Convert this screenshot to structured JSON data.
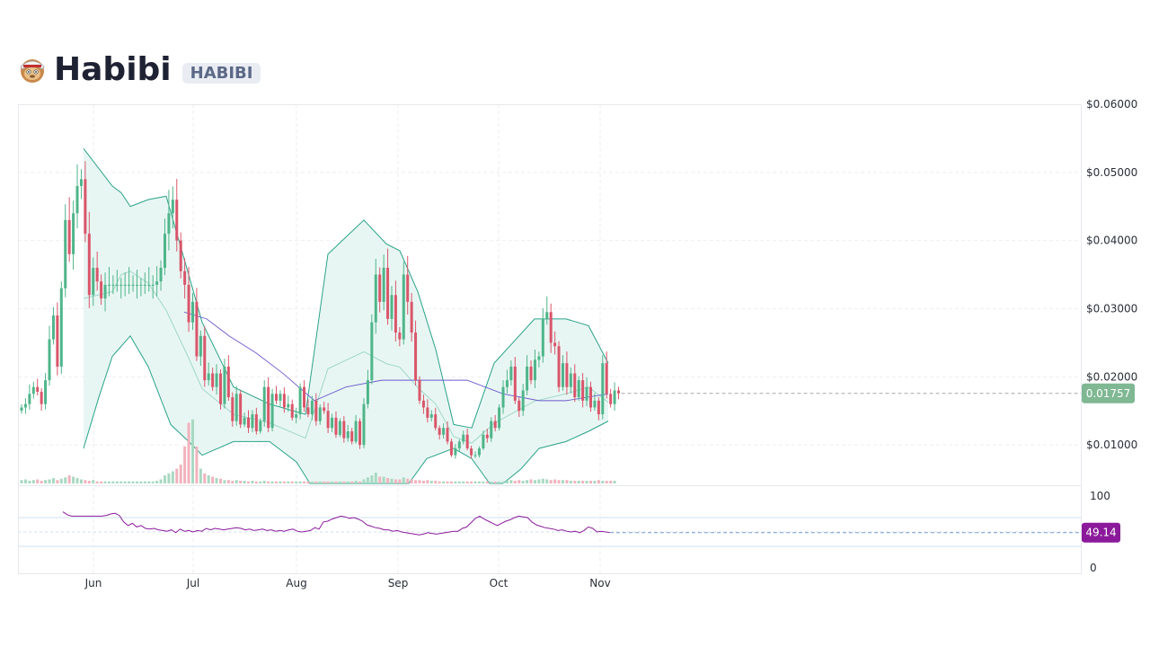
{
  "header": {
    "title": "Habibi",
    "ticker": "HABIBI",
    "logo_icon": "habibi-mascot-icon"
  },
  "colors": {
    "up": "#4fb58a",
    "down": "#d9566a",
    "bollinger": "#2aa38a",
    "bollinger_fill": "#e4f4f1",
    "sma": "#6a5acd",
    "rsi": "#8b1a9b",
    "price_badge": "#7fb893",
    "rsi_badge": "#8b1a9b"
  },
  "chart_data": {
    "type": "candlestick",
    "price_axis": {
      "ticks": [
        "$0.06000",
        "$0.05000",
        "$0.04000",
        "$0.03000",
        "$0.02000",
        "$0.01000"
      ],
      "range": [
        0.0,
        0.06
      ]
    },
    "rsi_axis": {
      "ticks": [
        "100",
        "0"
      ],
      "range": [
        0,
        100
      ],
      "bands": [
        30,
        50,
        70
      ]
    },
    "x_axis": {
      "ticks": [
        "Jun",
        "Jul",
        "Aug",
        "Sep",
        "Oct",
        "Nov"
      ]
    },
    "last_price": "0.01757",
    "last_rsi": "49.14",
    "grid": true,
    "closes": [
      0.0155,
      0.016,
      0.0175,
      0.0185,
      0.0178,
      0.016,
      0.0195,
      0.0255,
      0.029,
      0.0215,
      0.033,
      0.043,
      0.038,
      0.044,
      0.048,
      0.049,
      0.041,
      0.032,
      0.036,
      0.034,
      0.0315,
      0.0335,
      0.0335,
      0.0335,
      0.0335,
      0.0335,
      0.0335,
      0.0335,
      0.0335,
      0.0335,
      0.0335,
      0.0335,
      0.0335,
      0.0335,
      0.034,
      0.036,
      0.041,
      0.044,
      0.046,
      0.04,
      0.0355,
      0.0335,
      0.028,
      0.031,
      0.023,
      0.026,
      0.0195,
      0.0205,
      0.0185,
      0.0205,
      0.016,
      0.0215,
      0.017,
      0.0135,
      0.0175,
      0.013,
      0.014,
      0.0125,
      0.0145,
      0.012,
      0.0135,
      0.0185,
      0.0125,
      0.0175,
      0.0165,
      0.0175,
      0.0155,
      0.016,
      0.014,
      0.0145,
      0.0185,
      0.0155,
      0.0145,
      0.0165,
      0.0135,
      0.0155,
      0.015,
      0.0125,
      0.014,
      0.0115,
      0.0135,
      0.011,
      0.012,
      0.0105,
      0.0135,
      0.01,
      0.016,
      0.0195,
      0.028,
      0.035,
      0.031,
      0.036,
      0.0285,
      0.032,
      0.0265,
      0.0255,
      0.035,
      0.031,
      0.0265,
      0.0195,
      0.0165,
      0.0155,
      0.014,
      0.0145,
      0.0125,
      0.0115,
      0.0125,
      0.0105,
      0.0085,
      0.0095,
      0.0105,
      0.0115,
      0.0095,
      0.0085,
      0.0085,
      0.0095,
      0.0115,
      0.011,
      0.0135,
      0.0125,
      0.0155,
      0.0185,
      0.0195,
      0.0215,
      0.0165,
      0.015,
      0.018,
      0.0215,
      0.0195,
      0.0225,
      0.023,
      0.0285,
      0.0295,
      0.025,
      0.0245,
      0.0185,
      0.022,
      0.0185,
      0.0205,
      0.017,
      0.0195,
      0.0165,
      0.0185,
      0.0155,
      0.0165,
      0.0145,
      0.022,
      0.0175,
      0.016,
      0.018,
      0.01757
    ],
    "bollinger_upper": [
      [
        0.0535,
        93
      ],
      [
        0.048,
        125
      ],
      [
        0.047,
        135
      ],
      [
        0.045,
        145
      ],
      [
        0.046,
        165
      ],
      [
        0.0465,
        185
      ],
      [
        0.035,
        210
      ],
      [
        0.028,
        225
      ],
      [
        0.0185,
        260
      ],
      [
        0.016,
        300
      ],
      [
        0.0145,
        340
      ],
      [
        0.038,
        365
      ],
      [
        0.043,
        405
      ],
      [
        0.0395,
        430
      ],
      [
        0.0385,
        445
      ],
      [
        0.0325,
        465
      ],
      [
        0.024,
        485
      ],
      [
        0.013,
        505
      ],
      [
        0.0125,
        525
      ],
      [
        0.022,
        550
      ],
      [
        0.0285,
        595
      ],
      [
        0.0285,
        630
      ],
      [
        0.0275,
        655
      ],
      [
        0.022,
        677
      ]
    ],
    "bollinger_lower": [
      [
        0.0095,
        93
      ],
      [
        0.017,
        110
      ],
      [
        0.023,
        125
      ],
      [
        0.026,
        145
      ],
      [
        0.0215,
        165
      ],
      [
        0.013,
        190
      ],
      [
        0.0105,
        210
      ],
      [
        0.0085,
        225
      ],
      [
        0.0105,
        260
      ],
      [
        0.0105,
        300
      ],
      [
        0.0075,
        330
      ],
      [
        0.0035,
        345
      ],
      [
        0.0,
        360
      ],
      [
        0.0,
        400
      ],
      [
        0.0,
        425
      ],
      [
        0.0,
        455
      ],
      [
        0.008,
        475
      ],
      [
        0.0095,
        505
      ],
      [
        0.008,
        525
      ],
      [
        0.0005,
        545
      ],
      [
        0.0035,
        560
      ],
      [
        0.0065,
        580
      ],
      [
        0.0095,
        600
      ],
      [
        0.0105,
        630
      ],
      [
        0.012,
        655
      ],
      [
        0.0135,
        677
      ]
    ],
    "sma_long": [
      [
        0.0295,
        205
      ],
      [
        0.0285,
        230
      ],
      [
        0.026,
        255
      ],
      [
        0.0235,
        285
      ],
      [
        0.0205,
        315
      ],
      [
        0.0165,
        350
      ],
      [
        0.0185,
        385
      ],
      [
        0.0195,
        425
      ],
      [
        0.0195,
        475
      ],
      [
        0.0195,
        520
      ],
      [
        0.0175,
        560
      ],
      [
        0.0165,
        600
      ],
      [
        0.0165,
        630
      ],
      [
        0.0175,
        677
      ]
    ],
    "volume": [
      0.05,
      0.06,
      0.04,
      0.05,
      0.06,
      0.04,
      0.05,
      0.06,
      0.08,
      0.05,
      0.07,
      0.09,
      0.12,
      0.1,
      0.08,
      0.06,
      0.05,
      0.04,
      0.05,
      0.03,
      0.03,
      0.03,
      0.03,
      0.03,
      0.03,
      0.03,
      0.03,
      0.03,
      0.03,
      0.03,
      0.03,
      0.03,
      0.03,
      0.03,
      0.04,
      0.06,
      0.12,
      0.15,
      0.18,
      0.22,
      0.28,
      0.55,
      0.9,
      0.95,
      0.55,
      0.22,
      0.15,
      0.12,
      0.1,
      0.08,
      0.07,
      0.05,
      0.05,
      0.04,
      0.05,
      0.04,
      0.04,
      0.03,
      0.04,
      0.03,
      0.03,
      0.04,
      0.03,
      0.03,
      0.03,
      0.03,
      0.03,
      0.03,
      0.03,
      0.03,
      0.03,
      0.03,
      0.03,
      0.03,
      0.03,
      0.03,
      0.03,
      0.03,
      0.03,
      0.03,
      0.03,
      0.03,
      0.03,
      0.03,
      0.04,
      0.03,
      0.06,
      0.09,
      0.12,
      0.16,
      0.1,
      0.1,
      0.08,
      0.07,
      0.06,
      0.06,
      0.09,
      0.07,
      0.06,
      0.05,
      0.05,
      0.04,
      0.05,
      0.04,
      0.04,
      0.03,
      0.03,
      0.03,
      0.03,
      0.03,
      0.03,
      0.03,
      0.03,
      0.03,
      0.03,
      0.03,
      0.03,
      0.03,
      0.03,
      0.03,
      0.03,
      0.03,
      0.04,
      0.05,
      0.04,
      0.05,
      0.04,
      0.05,
      0.06,
      0.05,
      0.06,
      0.07,
      0.06,
      0.05,
      0.06,
      0.05,
      0.05,
      0.05,
      0.04,
      0.04,
      0.04,
      0.04,
      0.04,
      0.04,
      0.04,
      0.05,
      0.04,
      0.04,
      0.04,
      0.04
    ],
    "rsi": [
      78,
      74,
      72,
      72,
      72,
      72,
      72,
      72,
      72,
      72,
      73,
      75,
      76,
      73,
      64,
      59,
      62,
      57,
      59,
      55,
      54,
      55,
      53,
      52,
      51,
      53,
      49,
      54,
      51,
      52,
      50,
      52,
      51,
      55,
      53,
      55,
      54,
      53,
      54,
      55,
      56,
      55,
      53,
      54,
      52,
      53,
      54,
      52,
      53,
      51,
      52,
      51,
      53,
      54,
      51,
      50,
      51,
      52,
      56,
      54,
      64,
      65,
      68,
      70,
      72,
      71,
      69,
      70,
      68,
      65,
      60,
      58,
      56,
      55,
      53,
      53,
      51,
      52,
      50,
      49,
      48,
      47,
      46,
      47,
      49,
      48,
      47,
      48,
      49,
      50,
      51,
      51,
      55,
      57,
      63,
      69,
      72,
      68,
      65,
      62,
      59,
      62,
      65,
      67,
      70,
      72,
      71,
      70,
      64,
      60,
      58,
      56,
      55,
      54,
      52,
      53,
      51,
      50,
      51,
      49,
      52,
      57,
      55,
      50,
      51,
      50,
      49.14
    ]
  }
}
